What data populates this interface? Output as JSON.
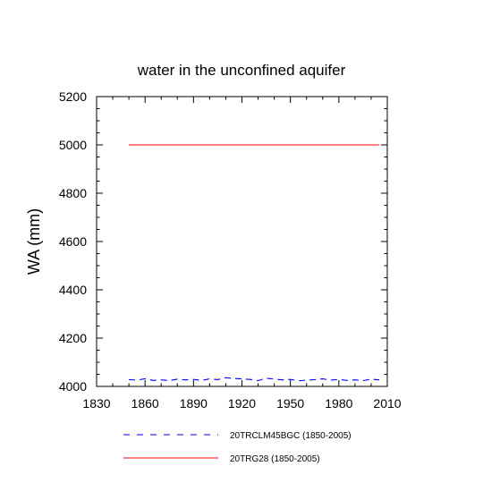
{
  "chart_data": {
    "type": "line",
    "title": "water in the unconfined aquifer",
    "xlabel": "",
    "ylabel": "WA  (mm)",
    "xlim": [
      1830,
      2010
    ],
    "ylim": [
      4000,
      5200
    ],
    "xticks": [
      1830,
      1860,
      1890,
      1920,
      1950,
      1980,
      2010
    ],
    "yticks": [
      4000,
      4200,
      4400,
      4600,
      4800,
      5000,
      5200
    ],
    "grid": false,
    "legend_position": "bottom",
    "series": [
      {
        "name": "20TRCLM45BGC (1850-2005)",
        "color": "#0000ff",
        "dash": "dashed",
        "x": [
          1850,
          1855,
          1860,
          1865,
          1870,
          1875,
          1880,
          1885,
          1890,
          1895,
          1900,
          1905,
          1910,
          1915,
          1920,
          1925,
          1930,
          1935,
          1940,
          1945,
          1950,
          1955,
          1960,
          1965,
          1970,
          1975,
          1980,
          1985,
          1990,
          1995,
          2000,
          2005
        ],
        "y": [
          4028,
          4026,
          4032,
          4025,
          4027,
          4024,
          4030,
          4027,
          4029,
          4025,
          4031,
          4028,
          4036,
          4033,
          4031,
          4029,
          4024,
          4034,
          4030,
          4027,
          4029,
          4023,
          4026,
          4028,
          4031,
          4026,
          4029,
          4025,
          4027,
          4024,
          4030,
          4027
        ]
      },
      {
        "name": "20TRG28 (1850-2005)",
        "color": "#ff0000",
        "dash": "solid",
        "x": [
          1850,
          2005
        ],
        "y": [
          5000,
          5000
        ]
      }
    ]
  }
}
